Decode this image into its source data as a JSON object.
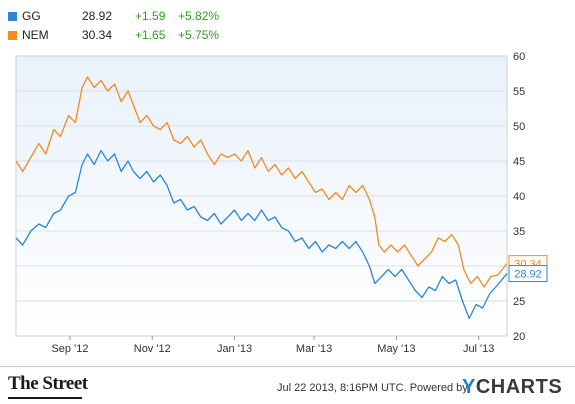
{
  "legend": [
    {
      "name": "GG",
      "price": "28.92",
      "change": "+1.59",
      "pct": "+5.82%",
      "color": "#2b87d6"
    },
    {
      "name": "NEM",
      "price": "30.34",
      "change": "+1.65",
      "pct": "+5.75%",
      "color": "#f08c22"
    }
  ],
  "footer": {
    "source_logo": "The Street",
    "timestamp": "Jul 22 2013, 8:16PM UTC.",
    "powered_by": "Powered by",
    "brand_y": "Y",
    "brand_rest": "CHARTS"
  },
  "chart_data": {
    "type": "line",
    "x_ticks": [
      "Sep '12",
      "Nov '12",
      "Jan '13",
      "Mar '13",
      "May '13",
      "Jul '13"
    ],
    "y_ticks": [
      20,
      25,
      30,
      35,
      40,
      45,
      50,
      55,
      60
    ],
    "ylim": [
      20,
      60
    ],
    "xlim": [
      "2012-07-23",
      "2013-07-22"
    ],
    "grid": "horizontal",
    "end_labels": [
      "30.34",
      "28.92"
    ],
    "series": [
      {
        "name": "NEM",
        "color": "#f08c22",
        "points": [
          [
            "2012-07-23",
            45.0
          ],
          [
            "2012-07-28",
            43.5
          ],
          [
            "2012-08-03",
            45.5
          ],
          [
            "2012-08-09",
            47.5
          ],
          [
            "2012-08-14",
            46.0
          ],
          [
            "2012-08-20",
            49.5
          ],
          [
            "2012-08-25",
            48.5
          ],
          [
            "2012-08-31",
            51.5
          ],
          [
            "2012-09-05",
            50.5
          ],
          [
            "2012-09-10",
            55.5
          ],
          [
            "2012-09-14",
            57.0
          ],
          [
            "2012-09-19",
            55.5
          ],
          [
            "2012-09-24",
            56.5
          ],
          [
            "2012-09-29",
            55.0
          ],
          [
            "2012-10-04",
            56.0
          ],
          [
            "2012-10-09",
            53.5
          ],
          [
            "2012-10-14",
            55.0
          ],
          [
            "2012-10-18",
            53.0
          ],
          [
            "2012-10-23",
            50.5
          ],
          [
            "2012-10-28",
            51.5
          ],
          [
            "2012-11-02",
            50.0
          ],
          [
            "2012-11-07",
            49.5
          ],
          [
            "2012-11-12",
            50.5
          ],
          [
            "2012-11-17",
            48.0
          ],
          [
            "2012-11-22",
            47.5
          ],
          [
            "2012-11-27",
            48.5
          ],
          [
            "2012-12-02",
            47.0
          ],
          [
            "2012-12-07",
            48.0
          ],
          [
            "2012-12-12",
            46.0
          ],
          [
            "2012-12-17",
            44.5
          ],
          [
            "2012-12-22",
            46.0
          ],
          [
            "2012-12-27",
            45.5
          ],
          [
            "2013-01-01",
            46.0
          ],
          [
            "2013-01-06",
            45.0
          ],
          [
            "2013-01-11",
            46.5
          ],
          [
            "2013-01-16",
            44.0
          ],
          [
            "2013-01-21",
            45.5
          ],
          [
            "2013-01-26",
            43.5
          ],
          [
            "2013-01-31",
            44.5
          ],
          [
            "2013-02-05",
            43.0
          ],
          [
            "2013-02-10",
            44.0
          ],
          [
            "2013-02-15",
            42.5
          ],
          [
            "2013-02-20",
            43.5
          ],
          [
            "2013-02-25",
            42.0
          ],
          [
            "2013-03-02",
            40.5
          ],
          [
            "2013-03-07",
            41.0
          ],
          [
            "2013-03-12",
            39.5
          ],
          [
            "2013-03-17",
            40.5
          ],
          [
            "2013-03-22",
            39.5
          ],
          [
            "2013-03-27",
            41.5
          ],
          [
            "2013-04-01",
            40.5
          ],
          [
            "2013-04-06",
            41.5
          ],
          [
            "2013-04-11",
            39.5
          ],
          [
            "2013-04-15",
            37.0
          ],
          [
            "2013-04-18",
            33.0
          ],
          [
            "2013-04-22",
            32.0
          ],
          [
            "2013-04-27",
            33.0
          ],
          [
            "2013-05-02",
            32.0
          ],
          [
            "2013-05-07",
            33.0
          ],
          [
            "2013-05-12",
            31.5
          ],
          [
            "2013-05-17",
            30.0
          ],
          [
            "2013-05-22",
            31.0
          ],
          [
            "2013-05-27",
            32.0
          ],
          [
            "2013-06-01",
            34.0
          ],
          [
            "2013-06-06",
            33.5
          ],
          [
            "2013-06-11",
            34.5
          ],
          [
            "2013-06-16",
            33.0
          ],
          [
            "2013-06-20",
            29.5
          ],
          [
            "2013-06-25",
            27.5
          ],
          [
            "2013-06-30",
            28.5
          ],
          [
            "2013-07-05",
            27.0
          ],
          [
            "2013-07-10",
            28.5
          ],
          [
            "2013-07-15",
            28.7
          ],
          [
            "2013-07-22",
            30.34
          ]
        ]
      },
      {
        "name": "GG",
        "color": "#2b87d6",
        "points": [
          [
            "2012-07-23",
            34.0
          ],
          [
            "2012-07-28",
            33.0
          ],
          [
            "2012-08-03",
            35.0
          ],
          [
            "2012-08-09",
            36.0
          ],
          [
            "2012-08-14",
            35.5
          ],
          [
            "2012-08-20",
            37.5
          ],
          [
            "2012-08-25",
            38.0
          ],
          [
            "2012-08-31",
            40.0
          ],
          [
            "2012-09-05",
            40.5
          ],
          [
            "2012-09-10",
            44.5
          ],
          [
            "2012-09-14",
            46.0
          ],
          [
            "2012-09-19",
            44.5
          ],
          [
            "2012-09-24",
            46.5
          ],
          [
            "2012-09-29",
            45.0
          ],
          [
            "2012-10-04",
            46.0
          ],
          [
            "2012-10-09",
            43.5
          ],
          [
            "2012-10-14",
            45.0
          ],
          [
            "2012-10-18",
            43.5
          ],
          [
            "2012-10-23",
            42.5
          ],
          [
            "2012-10-28",
            43.5
          ],
          [
            "2012-11-02",
            42.0
          ],
          [
            "2012-11-07",
            43.0
          ],
          [
            "2012-11-12",
            41.5
          ],
          [
            "2012-11-17",
            39.0
          ],
          [
            "2012-11-22",
            39.5
          ],
          [
            "2012-11-27",
            38.0
          ],
          [
            "2012-12-02",
            38.5
          ],
          [
            "2012-12-07",
            37.0
          ],
          [
            "2012-12-12",
            36.5
          ],
          [
            "2012-12-17",
            37.5
          ],
          [
            "2012-12-22",
            36.0
          ],
          [
            "2012-12-27",
            37.0
          ],
          [
            "2013-01-01",
            38.0
          ],
          [
            "2013-01-06",
            36.5
          ],
          [
            "2013-01-11",
            37.5
          ],
          [
            "2013-01-16",
            36.5
          ],
          [
            "2013-01-21",
            38.0
          ],
          [
            "2013-01-26",
            36.5
          ],
          [
            "2013-01-31",
            37.0
          ],
          [
            "2013-02-05",
            35.5
          ],
          [
            "2013-02-10",
            35.0
          ],
          [
            "2013-02-15",
            33.5
          ],
          [
            "2013-02-20",
            34.0
          ],
          [
            "2013-02-25",
            32.5
          ],
          [
            "2013-03-02",
            33.5
          ],
          [
            "2013-03-07",
            32.0
          ],
          [
            "2013-03-12",
            33.0
          ],
          [
            "2013-03-17",
            32.5
          ],
          [
            "2013-03-22",
            33.5
          ],
          [
            "2013-03-27",
            32.5
          ],
          [
            "2013-04-01",
            33.5
          ],
          [
            "2013-04-06",
            32.0
          ],
          [
            "2013-04-11",
            30.0
          ],
          [
            "2013-04-15",
            27.5
          ],
          [
            "2013-04-20",
            28.5
          ],
          [
            "2013-04-25",
            29.5
          ],
          [
            "2013-04-30",
            28.5
          ],
          [
            "2013-05-05",
            29.5
          ],
          [
            "2013-05-10",
            28.0
          ],
          [
            "2013-05-15",
            26.5
          ],
          [
            "2013-05-20",
            25.5
          ],
          [
            "2013-05-25",
            27.0
          ],
          [
            "2013-05-30",
            26.5
          ],
          [
            "2013-06-04",
            28.5
          ],
          [
            "2013-06-09",
            27.5
          ],
          [
            "2013-06-14",
            28.0
          ],
          [
            "2013-06-19",
            25.0
          ],
          [
            "2013-06-24",
            22.5
          ],
          [
            "2013-06-29",
            24.5
          ],
          [
            "2013-07-04",
            24.0
          ],
          [
            "2013-07-09",
            26.0
          ],
          [
            "2013-07-15",
            27.3
          ],
          [
            "2013-07-22",
            28.92
          ]
        ]
      }
    ]
  }
}
